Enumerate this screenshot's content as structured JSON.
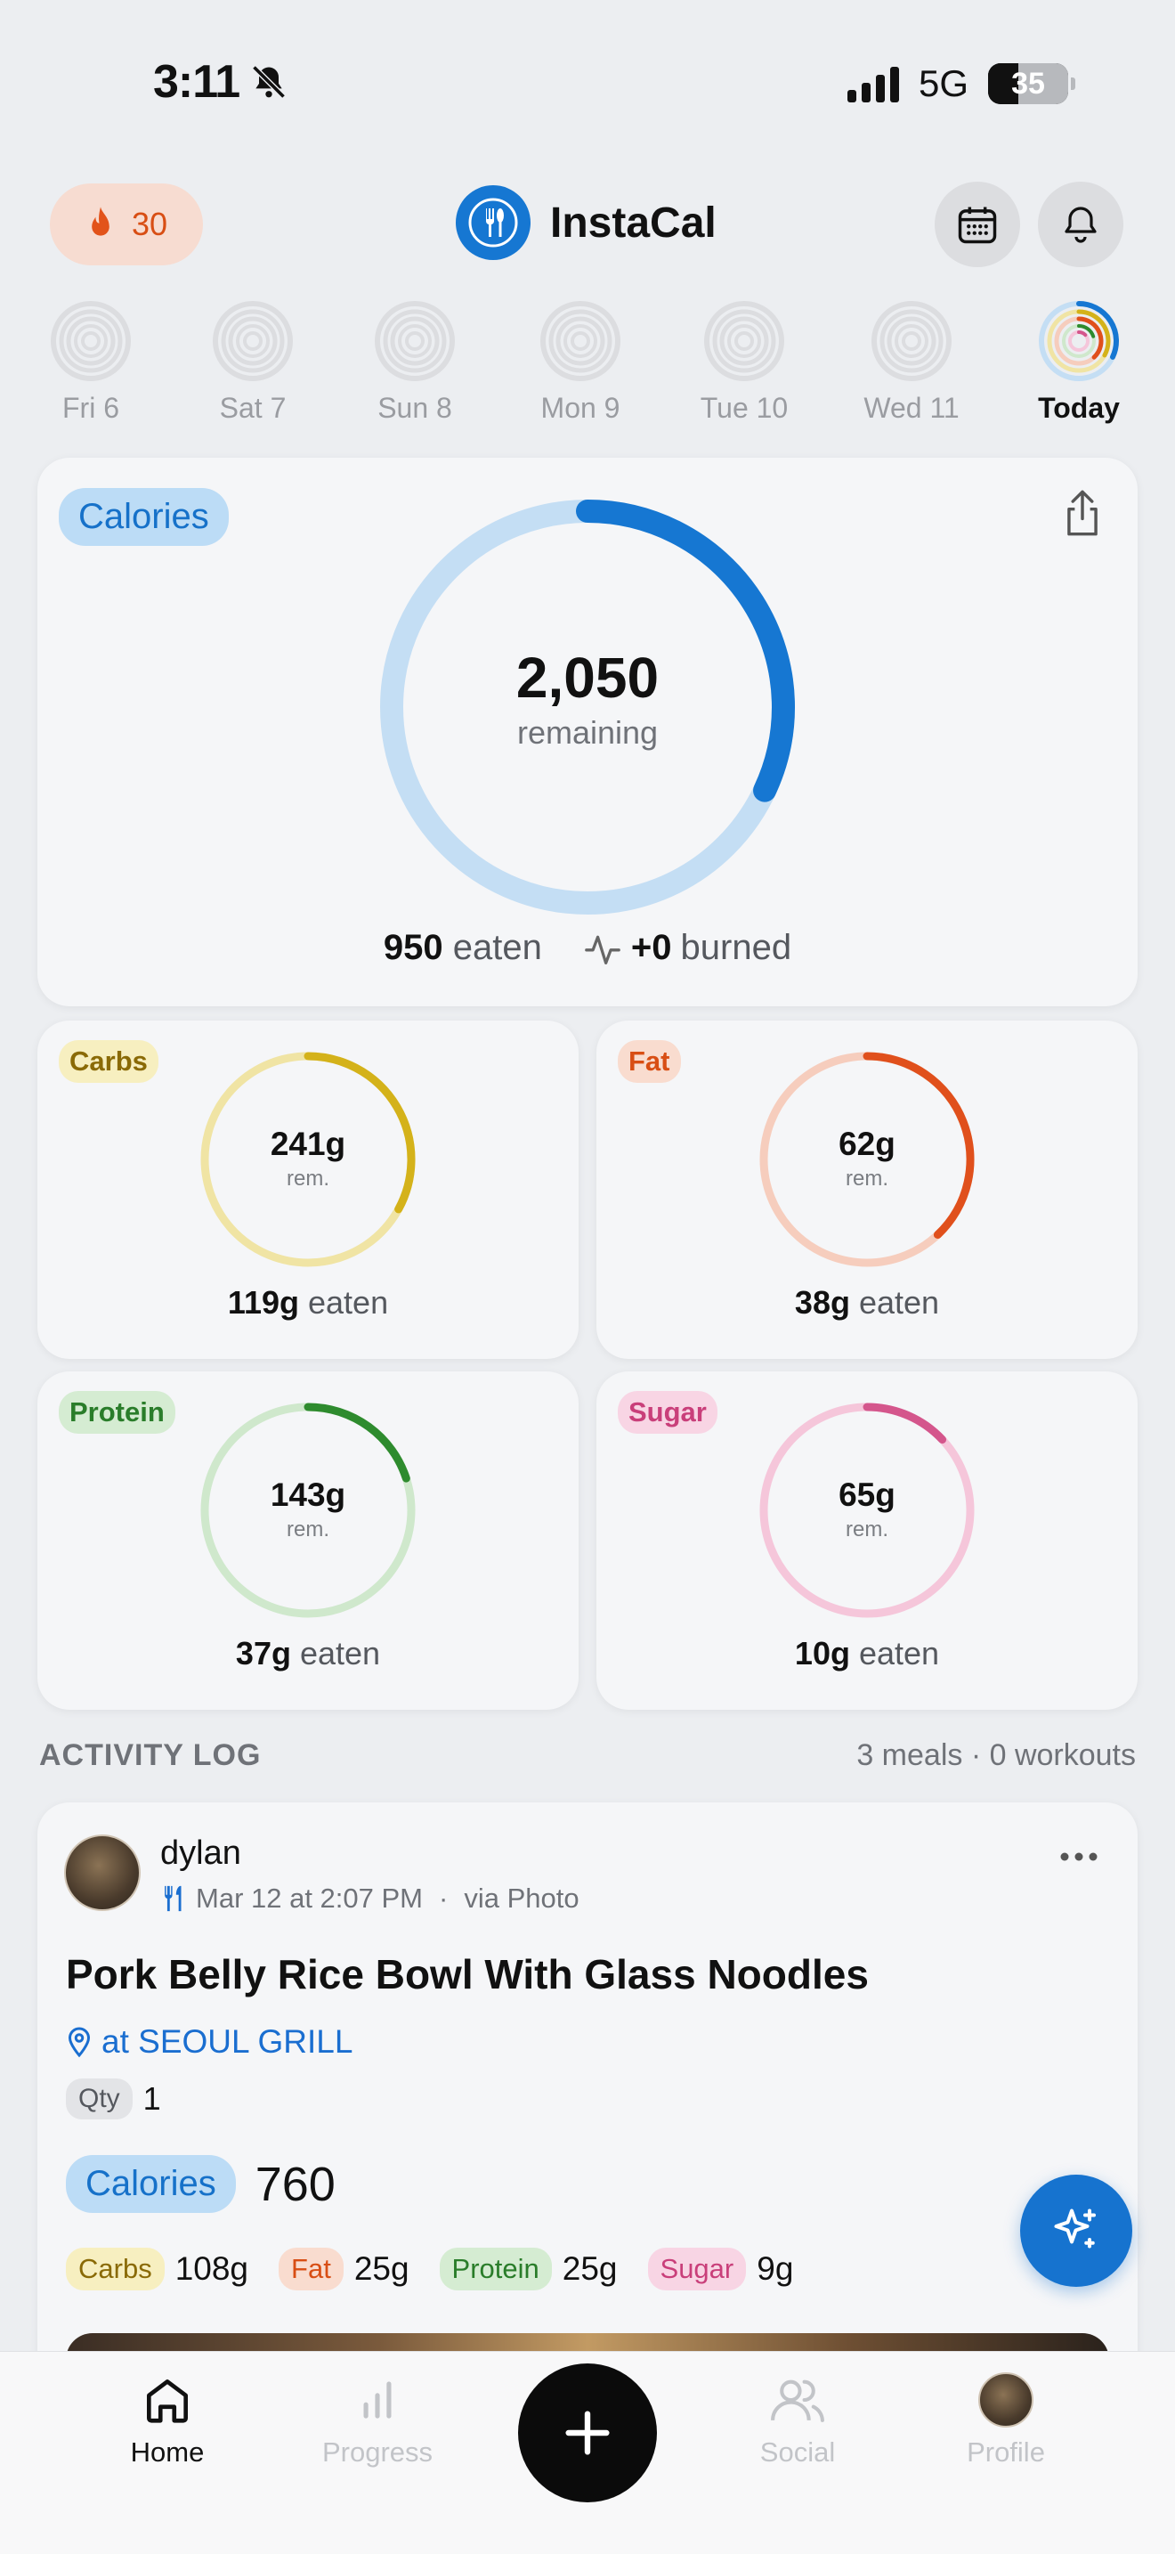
{
  "status": {
    "time": "3:11",
    "network": "5G",
    "battery": "35"
  },
  "header": {
    "streak_count": "30",
    "app_name": "InstaCal"
  },
  "week": [
    {
      "label": "Fri 6",
      "today": false
    },
    {
      "label": "Sat 7",
      "today": false
    },
    {
      "label": "Sun 8",
      "today": false
    },
    {
      "label": "Mon 9",
      "today": false
    },
    {
      "label": "Tue 10",
      "today": false
    },
    {
      "label": "Wed 11",
      "today": false
    },
    {
      "label": "Today",
      "today": true
    }
  ],
  "calories": {
    "label": "Calories",
    "remaining_value": "2,050",
    "remaining_label": "remaining",
    "eaten_value": "950",
    "eaten_label": "eaten",
    "burned_value": "+0",
    "burned_label": "burned",
    "progress": 0.32
  },
  "macros": {
    "carbs": {
      "label": "Carbs",
      "remaining": "241g",
      "rem_label": "rem.",
      "eaten": "119g",
      "eaten_label": "eaten",
      "progress": 0.33,
      "color": "#d4b21a",
      "track": "#f0e4a4",
      "tag_bg": "#f7efc0",
      "tag_fg": "#8a6a06"
    },
    "fat": {
      "label": "Fat",
      "remaining": "62g",
      "rem_label": "rem.",
      "eaten": "38g",
      "eaten_label": "eaten",
      "progress": 0.38,
      "color": "#e0501c",
      "track": "#f6cdbd",
      "tag_bg": "#f9dccf",
      "tag_fg": "#d84e14"
    },
    "protein": {
      "label": "Protein",
      "remaining": "143g",
      "rem_label": "rem.",
      "eaten": "37g",
      "eaten_label": "eaten",
      "progress": 0.2,
      "color": "#2e8b2e",
      "track": "#cfe8cc",
      "tag_bg": "#d5ecd2",
      "tag_fg": "#2a7d2a"
    },
    "sugar": {
      "label": "Sugar",
      "remaining": "65g",
      "rem_label": "rem.",
      "eaten": "10g",
      "eaten_label": "eaten",
      "progress": 0.13,
      "color": "#d4568c",
      "track": "#f5c6da",
      "tag_bg": "#f8d5e4",
      "tag_fg": "#c93f7a"
    }
  },
  "activity": {
    "title": "ACTIVITY LOG",
    "summary": "3 meals · 0 workouts",
    "entry": {
      "user": "dylan",
      "timestamp": "Mar 12 at 2:07 PM",
      "separator": "·",
      "source": "via Photo",
      "meal_name": "Pork Belly Rice Bowl With Glass Noodles",
      "location": "at SEOUL GRILL",
      "qty_label": "Qty",
      "qty_value": "1",
      "calories_label": "Calories",
      "calories_value": "760",
      "macros": [
        {
          "label": "Carbs",
          "value": "108g"
        },
        {
          "label": "Fat",
          "value": "25g"
        },
        {
          "label": "Protein",
          "value": "25g"
        },
        {
          "label": "Sugar",
          "value": "9g"
        }
      ]
    }
  },
  "tabs": [
    {
      "label": "Home",
      "active": true
    },
    {
      "label": "Progress",
      "active": false
    },
    {
      "label": "Social",
      "active": false
    },
    {
      "label": "Profile",
      "active": false
    }
  ],
  "colors": {
    "accent": "#1677d2",
    "calorie_track": "#c4def4"
  }
}
